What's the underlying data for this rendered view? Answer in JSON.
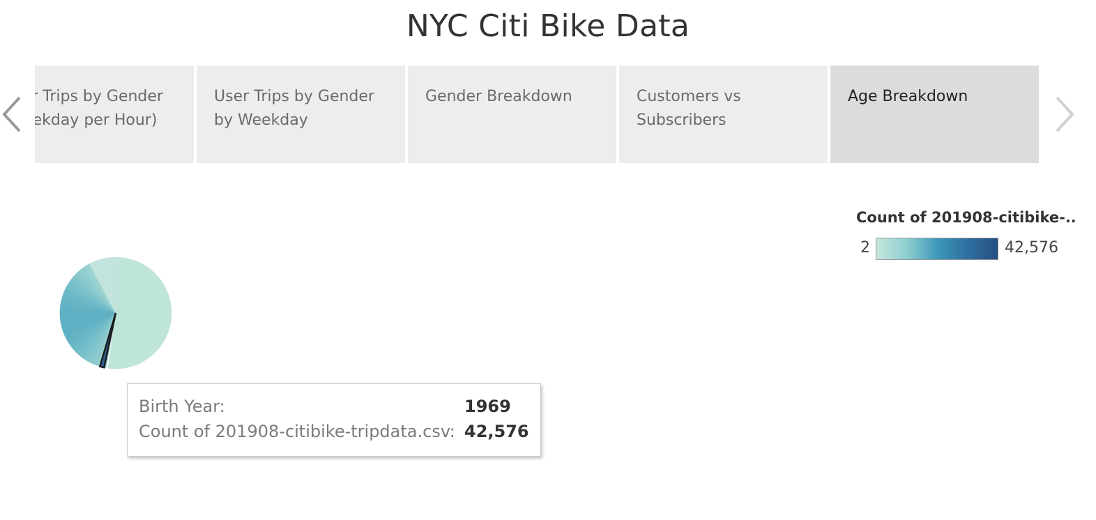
{
  "dashboard": {
    "title": "NYC Citi Bike Data"
  },
  "tabs": [
    {
      "label": "User Trips by Gender\n(Weekday per Hour)",
      "active": false
    },
    {
      "label": "User Trips by Gender\nby Weekday",
      "active": false
    },
    {
      "label": "Gender Breakdown",
      "active": false
    },
    {
      "label": "Customers vs\nSubscribers",
      "active": false
    },
    {
      "label": "Age Breakdown",
      "active": true
    }
  ],
  "legend": {
    "title": "Count of 201908-citibike-..",
    "min": "2",
    "max": "42,576",
    "colors": [
      "#c4e6dc",
      "#8fcfd0",
      "#3c98b9",
      "#2e6fa0",
      "#264f82"
    ]
  },
  "tooltip": {
    "row1_label": "Birth Year:",
    "row1_value": "1969",
    "row2_label": "Count of 201908-citibike-tripdata.csv:",
    "row2_value": "42,576"
  },
  "chart_data": {
    "type": "pie",
    "highlighted": {
      "birth_year": "1969",
      "count": 42576
    },
    "color_range": [
      2,
      42576
    ]
  },
  "icons": {
    "prev": "chevron-left-icon",
    "next": "chevron-right-icon"
  }
}
